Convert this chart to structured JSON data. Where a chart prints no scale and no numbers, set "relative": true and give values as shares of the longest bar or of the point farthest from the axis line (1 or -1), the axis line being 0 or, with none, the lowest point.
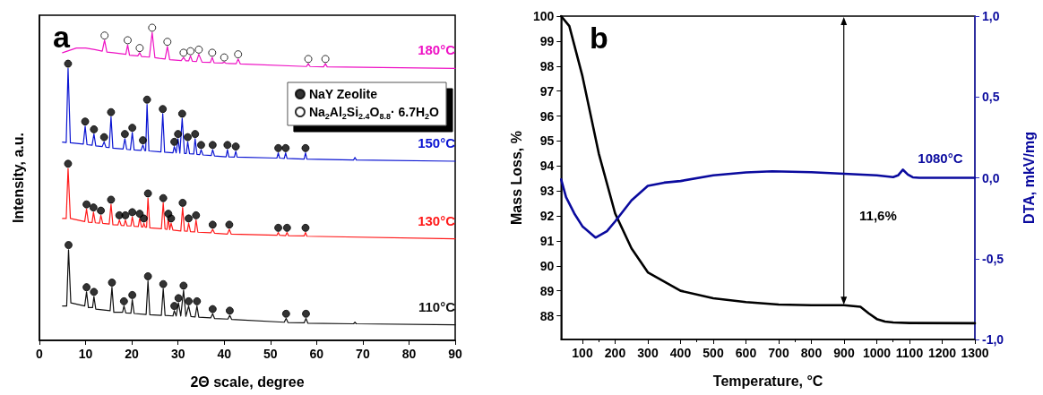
{
  "chart_data": [
    {
      "type": "line",
      "title": "a",
      "xlabel": "2Θ scale, degree",
      "ylabel": "Intensity, a.u.",
      "relative": true,
      "xlim": [
        0,
        90
      ],
      "xticks": [
        0,
        10,
        20,
        30,
        40,
        50,
        60,
        70,
        80,
        90
      ],
      "legend": "top right",
      "series": [
        {
          "name": "180°C",
          "color": "#ee11c4",
          "x": [
            5,
            6,
            8,
            10,
            12,
            13.6,
            14.1,
            14.6,
            16,
            18.7,
            19.1,
            19.5,
            21.3,
            21.7,
            22.1,
            23.8,
            24.4,
            25.0,
            26,
            27.2,
            27.7,
            28.2,
            30.7,
            31.2,
            31.7,
            32.3,
            32.7,
            33.1,
            34.0,
            34.5,
            35.2,
            37.0,
            37.4,
            37.8,
            39.6,
            40.0,
            40.4,
            42.6,
            43.0,
            43.5,
            57.8,
            58.2,
            58.6,
            61.5,
            61.9,
            62.3,
            90
          ],
          "values": [
            0.92,
            0.925,
            0.935,
            0.935,
            0.93,
            0.925,
            0.96,
            0.922,
            0.92,
            0.915,
            0.945,
            0.912,
            0.91,
            0.92,
            0.908,
            0.906,
            0.985,
            0.904,
            0.902,
            0.9,
            0.94,
            0.898,
            0.895,
            0.905,
            0.894,
            0.894,
            0.91,
            0.893,
            0.892,
            0.915,
            0.89,
            0.889,
            0.905,
            0.888,
            0.887,
            0.89,
            0.886,
            0.885,
            0.9,
            0.884,
            0.876,
            0.885,
            0.876,
            0.875,
            0.885,
            0.875,
            0.87
          ]
        },
        {
          "name": "150°C",
          "color": "#0a14d2",
          "x": [
            5,
            5.8,
            6.2,
            6.7,
            9.5,
            9.9,
            10.3,
            11.4,
            11.8,
            12.2,
            13.6,
            14.0,
            14.4,
            15.1,
            15.5,
            15.9,
            18.1,
            18.5,
            18.9,
            19.7,
            20.1,
            20.5,
            22.0,
            22.4,
            22.8,
            23.0,
            23.3,
            23.7,
            26.3,
            26.7,
            27.1,
            28.9,
            29.2,
            29.6,
            30.0,
            30.4,
            30.9,
            31.4,
            31.8,
            32.1,
            32.5,
            33.4,
            33.7,
            34.1,
            34.7,
            35.0,
            35.4,
            37.2,
            37.5,
            37.9,
            40.4,
            40.7,
            41.0,
            42.2,
            42.5,
            42.8,
            51.4,
            51.7,
            52.0,
            53.0,
            53.3,
            53.6,
            57.3,
            57.6,
            57.9,
            68,
            68.3,
            68.6,
            90
          ],
          "values": [
            0.634,
            0.633,
            0.87,
            0.632,
            0.628,
            0.685,
            0.626,
            0.624,
            0.66,
            0.622,
            0.62,
            0.635,
            0.618,
            0.617,
            0.715,
            0.615,
            0.612,
            0.645,
            0.611,
            0.61,
            0.665,
            0.609,
            0.608,
            0.625,
            0.607,
            0.607,
            0.755,
            0.606,
            0.603,
            0.725,
            0.602,
            0.6,
            0.62,
            0.6,
            0.645,
            0.599,
            0.71,
            0.598,
            0.598,
            0.635,
            0.597,
            0.596,
            0.645,
            0.595,
            0.594,
            0.61,
            0.593,
            0.591,
            0.61,
            0.59,
            0.587,
            0.61,
            0.587,
            0.586,
            0.605,
            0.586,
            0.583,
            0.6,
            0.583,
            0.582,
            0.6,
            0.582,
            0.58,
            0.6,
            0.58,
            0.577,
            0.585,
            0.577,
            0.573
          ]
        },
        {
          "name": "130°C",
          "color": "#ff1a1a",
          "x": [
            5,
            5.8,
            6.2,
            6.7,
            9.8,
            10.2,
            10.6,
            11.4,
            11.7,
            12.1,
            13.0,
            13.3,
            13.7,
            15.1,
            15.5,
            15.9,
            17.0,
            17.3,
            17.7,
            18.3,
            18.6,
            19.0,
            19.8,
            20.1,
            20.5,
            21.4,
            21.7,
            22.1,
            22.4,
            22.6,
            22.9,
            23.2,
            23.5,
            23.9,
            26.4,
            26.8,
            27.2,
            27.6,
            27.9,
            28.2,
            28.5,
            28.9,
            30.6,
            31.0,
            31.4,
            32.0,
            32.3,
            32.7,
            33.6,
            33.9,
            34.3,
            37.1,
            37.5,
            37.9,
            40.7,
            41.1,
            41.5,
            51.4,
            51.7,
            52.0,
            53.3,
            53.6,
            53.9,
            57.3,
            57.6,
            57.9,
            90
          ],
          "values": [
            0.39,
            0.39,
            0.55,
            0.39,
            0.38,
            0.42,
            0.378,
            0.377,
            0.41,
            0.376,
            0.375,
            0.4,
            0.374,
            0.372,
            0.435,
            0.37,
            0.369,
            0.385,
            0.368,
            0.367,
            0.385,
            0.366,
            0.366,
            0.395,
            0.365,
            0.364,
            0.39,
            0.363,
            0.363,
            0.375,
            0.362,
            0.362,
            0.455,
            0.36,
            0.357,
            0.44,
            0.356,
            0.355,
            0.39,
            0.354,
            0.375,
            0.353,
            0.35,
            0.425,
            0.35,
            0.349,
            0.375,
            0.348,
            0.347,
            0.385,
            0.346,
            0.344,
            0.355,
            0.343,
            0.34,
            0.355,
            0.34,
            0.336,
            0.345,
            0.336,
            0.335,
            0.345,
            0.335,
            0.334,
            0.345,
            0.333,
            0.325
          ]
        },
        {
          "name": "110°C",
          "color": "#111111",
          "x": [
            5,
            5.9,
            6.3,
            6.8,
            9.8,
            10.2,
            10.6,
            11.5,
            11.8,
            12.2,
            15.3,
            15.7,
            16.1,
            18.0,
            18.3,
            18.7,
            19.8,
            20.1,
            20.5,
            23.1,
            23.5,
            23.9,
            26.4,
            26.8,
            27.2,
            28.9,
            29.2,
            29.6,
            30.1,
            30.6,
            31.2,
            31.7,
            32.3,
            32.8,
            33.7,
            34.1,
            34.5,
            37.1,
            37.5,
            37.9,
            40.8,
            41.2,
            41.6,
            53.0,
            53.4,
            53.8,
            57.3,
            57.7,
            58.1,
            68,
            68.3,
            68.6,
            90
          ],
          "values": [
            0.11,
            0.11,
            0.29,
            0.12,
            0.11,
            0.155,
            0.105,
            0.105,
            0.14,
            0.1,
            0.095,
            0.17,
            0.09,
            0.09,
            0.11,
            0.088,
            0.087,
            0.13,
            0.086,
            0.083,
            0.19,
            0.082,
            0.08,
            0.165,
            0.08,
            0.078,
            0.095,
            0.078,
            0.12,
            0.078,
            0.16,
            0.077,
            0.11,
            0.076,
            0.075,
            0.11,
            0.074,
            0.072,
            0.085,
            0.07,
            0.068,
            0.08,
            0.067,
            0.058,
            0.07,
            0.057,
            0.056,
            0.07,
            0.055,
            0.053,
            0.058,
            0.053,
            0.05
          ]
        },
        {
          "type": "scatter",
          "name": "NaY Zeolite",
          "color": "#000000",
          "x": [
            6.2,
            9.9,
            11.8,
            14.0,
            15.5,
            18.5,
            20.1,
            22.4,
            23.3,
            26.7,
            29.2,
            30.0,
            30.9,
            32.1,
            33.7,
            35.0,
            37.5,
            40.7,
            42.5,
            51.7,
            53.3,
            57.6,
            6.2,
            10.2,
            11.7,
            13.3,
            15.5,
            17.3,
            18.6,
            20.1,
            21.7,
            22.6,
            23.5,
            26.8,
            27.9,
            28.5,
            31.0,
            32.3,
            33.9,
            37.5,
            41.1,
            51.7,
            53.6,
            57.6,
            6.3,
            10.2,
            11.8,
            15.7,
            18.3,
            20.1,
            23.5,
            26.8,
            29.2,
            30.1,
            31.2,
            32.3,
            34.1,
            37.5,
            41.2,
            53.4,
            57.7
          ],
          "values": [
            0.885,
            0.7,
            0.675,
            0.65,
            0.73,
            0.66,
            0.68,
            0.64,
            0.77,
            0.74,
            0.635,
            0.66,
            0.725,
            0.65,
            0.66,
            0.625,
            0.625,
            0.625,
            0.62,
            0.615,
            0.615,
            0.615,
            0.565,
            0.435,
            0.425,
            0.415,
            0.45,
            0.4,
            0.4,
            0.41,
            0.405,
            0.39,
            0.47,
            0.455,
            0.405,
            0.39,
            0.44,
            0.39,
            0.4,
            0.37,
            0.37,
            0.36,
            0.36,
            0.36,
            0.305,
            0.17,
            0.155,
            0.185,
            0.125,
            0.145,
            0.205,
            0.18,
            0.11,
            0.135,
            0.175,
            0.125,
            0.125,
            0.1,
            0.095,
            0.085,
            0.085
          ]
        },
        {
          "type": "scatter",
          "name": "Na$_{2}$Al$_{2}$Si$_{2.4}$O$_{8.8}$· 6.7H$_{2}$O",
          "color": "#ffffff",
          "x": [
            14.1,
            19.1,
            21.7,
            24.4,
            27.7,
            31.2,
            32.7,
            34.5,
            37.4,
            40.0,
            43.0,
            58.2,
            61.9
          ],
          "values": [
            0.975,
            0.96,
            0.935,
            1.0,
            0.955,
            0.92,
            0.925,
            0.93,
            0.92,
            0.905,
            0.915,
            0.9,
            0.9
          ]
        }
      ]
    },
    {
      "type": "line",
      "title": "b",
      "xlabel": "Temperature, °C",
      "ylabel": "Mass Loss, %",
      "y2label": "DTA, mkV/mg",
      "xlim": [
        35,
        1300
      ],
      "xticks": [
        100,
        200,
        300,
        400,
        500,
        600,
        700,
        800,
        900,
        1000,
        1100,
        1200,
        1300
      ],
      "ylim": [
        87.05,
        100
      ],
      "yticks": [
        88,
        89,
        90,
        91,
        92,
        93,
        94,
        95,
        96,
        97,
        98,
        99,
        100
      ],
      "y2lim": [
        -1,
        1
      ],
      "y2ticks": [
        {
          "value": -1,
          "label": "-1,0"
        },
        {
          "value": -0.5,
          "label": "-0,5"
        },
        {
          "value": 0,
          "label": "0,0"
        },
        {
          "value": 0.5,
          "label": "0,5"
        },
        {
          "value": 1,
          "label": "1,0"
        }
      ],
      "annotations": [
        "11,6%",
        "1080°C"
      ],
      "series": [
        {
          "color": "#000000",
          "x": [
            35,
            60,
            100,
            150,
            200,
            250,
            300,
            400,
            500,
            600,
            700,
            800,
            900,
            950,
            975,
            1000,
            1025,
            1050,
            1100,
            1300
          ],
          "values": [
            100,
            99.6,
            97.6,
            94.5,
            92.1,
            90.7,
            89.74,
            89.0,
            88.7,
            88.55,
            88.45,
            88.42,
            88.42,
            88.36,
            88.1,
            87.87,
            87.77,
            87.73,
            87.71,
            87.7
          ]
        },
        {
          "color": "#0a0a9e",
          "axis": "y2",
          "x": [
            35,
            50,
            75,
            100,
            140,
            175,
            200,
            250,
            300,
            350,
            400,
            500,
            600,
            680,
            800,
            900,
            1000,
            1050,
            1065,
            1080,
            1095,
            1110,
            1130,
            1300
          ],
          "values": [
            -0.01,
            -0.12,
            -0.22,
            -0.3,
            -0.37,
            -0.33,
            -0.27,
            -0.14,
            -0.05,
            -0.03,
            -0.02,
            0.015,
            0.033,
            0.04,
            0.035,
            0.025,
            0.015,
            0.004,
            0.015,
            0.05,
            0.02,
            0.003,
            0,
            0
          ]
        }
      ]
    }
  ]
}
